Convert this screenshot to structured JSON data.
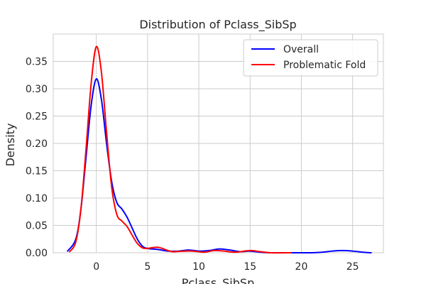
{
  "chart_data": {
    "type": "line",
    "title": "Distribution of Pclass_SibSp",
    "xlabel": "Pclass_SibSp",
    "ylabel": "Density",
    "xlim": [
      -4.2,
      28.0
    ],
    "ylim": [
      0,
      0.4
    ],
    "xticks": [
      0,
      5,
      10,
      15,
      20,
      25
    ],
    "xtick_labels": [
      "0",
      "5",
      "10",
      "15",
      "20",
      "25"
    ],
    "yticks": [
      0.0,
      0.05,
      0.1,
      0.15,
      0.2,
      0.25,
      0.3,
      0.35
    ],
    "ytick_labels": [
      "0.00",
      "0.05",
      "0.10",
      "0.15",
      "0.20",
      "0.25",
      "0.30",
      "0.35"
    ],
    "grid": true,
    "legend_position": "top-right",
    "series": [
      {
        "name": "Overall",
        "color": "#0000ff",
        "points": [
          [
            -2.8,
            0.003
          ],
          [
            -2.0,
            0.025
          ],
          [
            -1.5,
            0.08
          ],
          [
            -1.0,
            0.175
          ],
          [
            -0.5,
            0.27
          ],
          [
            0.0,
            0.318
          ],
          [
            0.5,
            0.28
          ],
          [
            1.0,
            0.2
          ],
          [
            1.5,
            0.13
          ],
          [
            2.0,
            0.092
          ],
          [
            2.5,
            0.08
          ],
          [
            3.0,
            0.065
          ],
          [
            3.5,
            0.045
          ],
          [
            4.0,
            0.025
          ],
          [
            4.5,
            0.012
          ],
          [
            5.0,
            0.008
          ],
          [
            6.0,
            0.006
          ],
          [
            7.0,
            0.003
          ],
          [
            8.0,
            0.003
          ],
          [
            9.0,
            0.005
          ],
          [
            10.0,
            0.003
          ],
          [
            11.0,
            0.004
          ],
          [
            12.0,
            0.007
          ],
          [
            13.0,
            0.005
          ],
          [
            14.0,
            0.002
          ],
          [
            15.0,
            0.003
          ],
          [
            16.0,
            0.001
          ],
          [
            17.0,
            0.0
          ],
          [
            19.0,
            0.0
          ],
          [
            21.0,
            0.0
          ],
          [
            22.0,
            0.001
          ],
          [
            23.0,
            0.003
          ],
          [
            24.0,
            0.004
          ],
          [
            25.0,
            0.003
          ],
          [
            26.0,
            0.001
          ],
          [
            26.8,
            0.0
          ]
        ]
      },
      {
        "name": "Problematic Fold",
        "color": "#ff0000",
        "points": [
          [
            -2.6,
            0.002
          ],
          [
            -2.0,
            0.02
          ],
          [
            -1.5,
            0.08
          ],
          [
            -1.0,
            0.19
          ],
          [
            -0.5,
            0.31
          ],
          [
            0.0,
            0.377
          ],
          [
            0.5,
            0.33
          ],
          [
            1.0,
            0.22
          ],
          [
            1.5,
            0.12
          ],
          [
            2.0,
            0.07
          ],
          [
            2.5,
            0.058
          ],
          [
            3.0,
            0.048
          ],
          [
            3.5,
            0.032
          ],
          [
            4.0,
            0.017
          ],
          [
            4.5,
            0.009
          ],
          [
            5.0,
            0.008
          ],
          [
            6.0,
            0.01
          ],
          [
            7.0,
            0.004
          ],
          [
            7.5,
            0.002
          ],
          [
            8.5,
            0.003
          ],
          [
            9.5,
            0.003
          ],
          [
            10.5,
            0.001
          ],
          [
            11.5,
            0.004
          ],
          [
            12.5,
            0.003
          ],
          [
            13.5,
            0.001
          ],
          [
            15.0,
            0.004
          ],
          [
            16.0,
            0.002
          ],
          [
            17.0,
            0.0
          ],
          [
            19.0,
            0.0
          ]
        ]
      }
    ]
  }
}
